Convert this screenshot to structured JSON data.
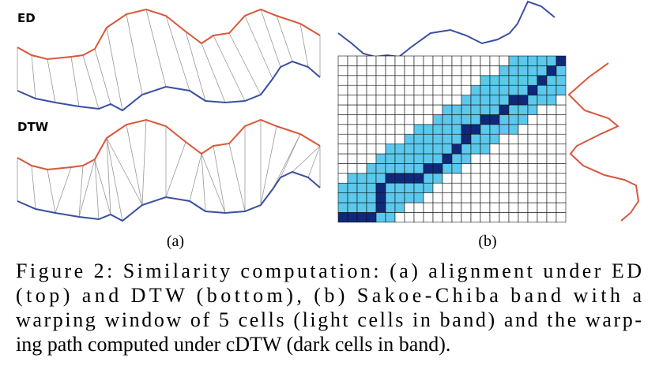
{
  "figure": {
    "panel_a": {
      "label_top": "ED",
      "label_bottom": "DTW",
      "caption": "(a)"
    },
    "panel_b": {
      "caption": "(b)"
    },
    "caption_lines": [
      "Figure 2: Similarity computation: (a) alignment under ED",
      "(top) and DTW (bottom), (b) Sakoe-Chiba band with a",
      "warping window of 5 cells (light cells in band) and the warp-",
      "ing path computed under cDTW (dark cells in band)."
    ]
  }
}
